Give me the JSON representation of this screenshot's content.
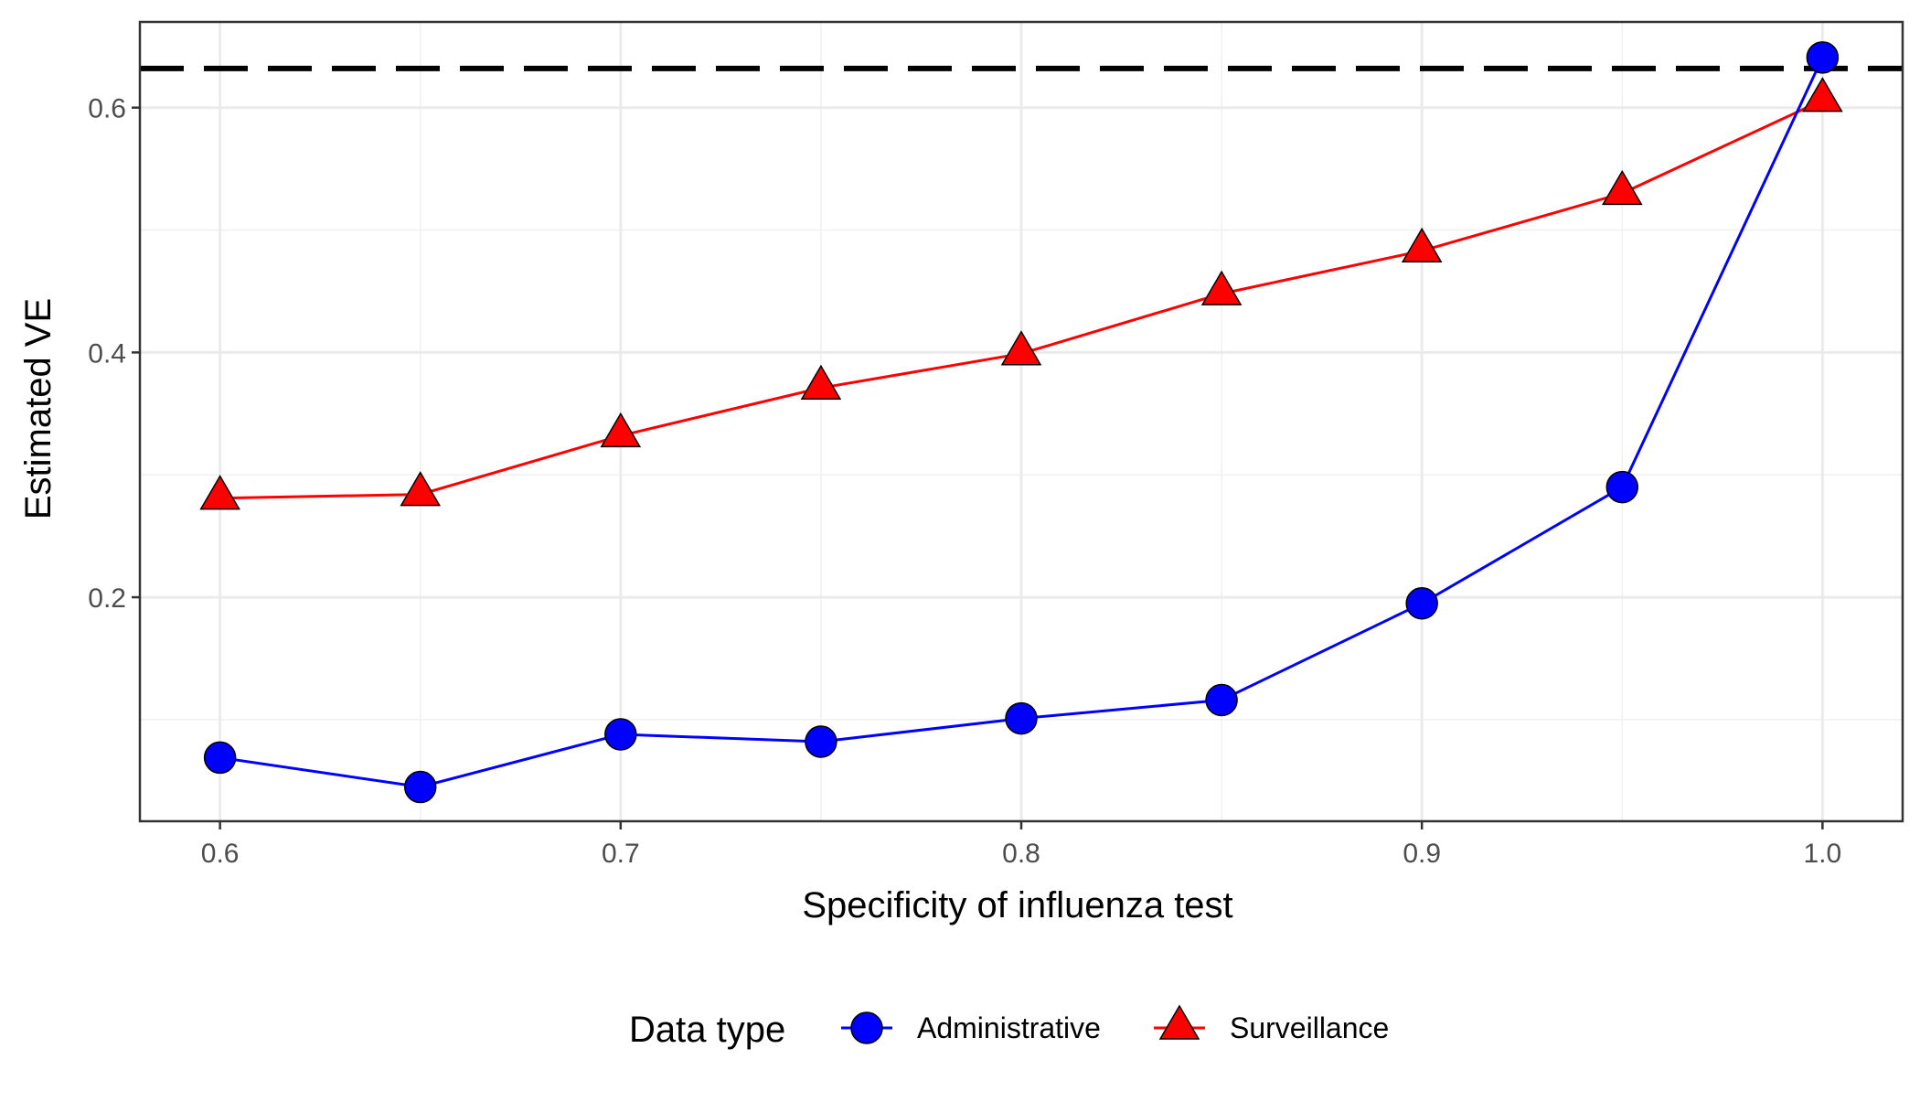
{
  "chart_data": {
    "type": "line",
    "title": "",
    "xlabel": "Specificity of influenza test",
    "ylabel": "Estimated VE",
    "xlim": [
      0.58,
      1.02
    ],
    "ylim": [
      0.017,
      0.67
    ],
    "x_ticks": [
      0.6,
      0.7,
      0.8,
      0.9,
      1.0
    ],
    "x_tick_labels": [
      "0.6",
      "0.7",
      "0.8",
      "0.9",
      "1.0"
    ],
    "y_ticks": [
      0.2,
      0.4,
      0.6
    ],
    "y_tick_labels": [
      "0.2",
      "0.4",
      "0.6"
    ],
    "grid": true,
    "legend_position": "bottom",
    "legend_title": "Data type",
    "reference_line": {
      "y": 0.632,
      "style": "dashed",
      "color": "#000000"
    },
    "x": [
      0.6,
      0.65,
      0.7,
      0.75,
      0.8,
      0.85,
      0.9,
      0.95,
      1.0
    ],
    "series": [
      {
        "name": "Administrative",
        "marker": "circle",
        "color": "#0000ff",
        "values": [
          0.069,
          0.045,
          0.088,
          0.082,
          0.101,
          0.116,
          0.195,
          0.29,
          0.641
        ]
      },
      {
        "name": "Surveillance",
        "marker": "triangle",
        "color": "#ff0000",
        "values": [
          0.281,
          0.284,
          0.332,
          0.371,
          0.399,
          0.448,
          0.483,
          0.53,
          0.606
        ]
      }
    ]
  }
}
